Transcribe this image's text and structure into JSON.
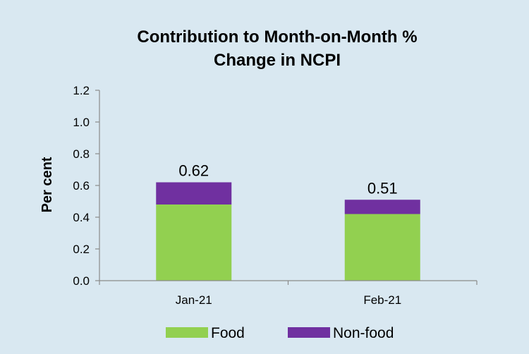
{
  "chart_data": {
    "type": "bar",
    "stacked": true,
    "title": "Contribution to Month-on-Month % Change in NCPI",
    "title_lines": [
      "Contribution to Month-on-Month %",
      "Change in NCPI"
    ],
    "xlabel": "",
    "ylabel": "Per cent",
    "ylim": [
      0,
      1.2
    ],
    "yticks": [
      "0.0",
      "0.2",
      "0.4",
      "0.6",
      "0.8",
      "1.0",
      "1.2"
    ],
    "categories": [
      "Jan-21",
      "Feb-21"
    ],
    "series": [
      {
        "name": "Food",
        "values": [
          0.48,
          0.42
        ],
        "color": "#92d050"
      },
      {
        "name": "Non-food",
        "values": [
          0.14,
          0.09
        ],
        "color": "#7030a0"
      }
    ],
    "totals": [
      0.62,
      0.51
    ],
    "total_labels": [
      "0.62",
      "0.51"
    ],
    "grid": false,
    "legend_position": "bottom"
  }
}
